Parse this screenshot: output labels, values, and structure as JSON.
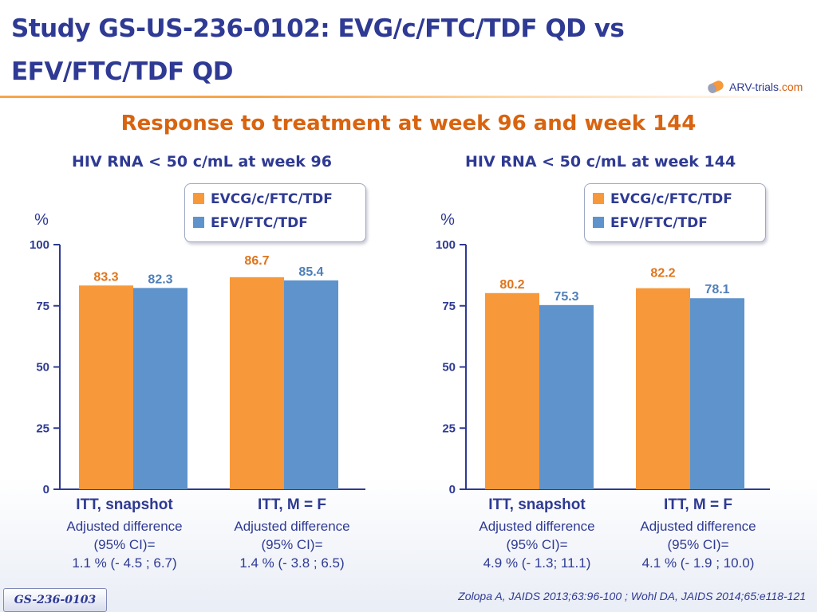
{
  "slide": {
    "title_line1": "Study GS-US-236-0102: EVG/c/FTC/TDF QD vs",
    "title_line2": "EFV/FTC/TDF QD",
    "subtitle": "Response to treatment at week 96 and week 144",
    "study_badge": "GS-236-0103",
    "citation": "Zolopa A, JAIDS 2013;63:96-100 ; Wohl DA, JAIDS 2014;65:e118-121",
    "logo": {
      "brand": "ARV-trials",
      "suffix": "com"
    }
  },
  "colors": {
    "title": "#2e3a93",
    "subtitle": "#d9630f",
    "orange": "#f7983a",
    "blue": "#5f93cb"
  },
  "chart_data": [
    {
      "type": "bar",
      "title": "HIV RNA < 50 c/mL at week 96",
      "ylabel": "%",
      "ylim": [
        0,
        100
      ],
      "yticks": [
        0,
        25,
        50,
        75,
        100
      ],
      "categories": [
        "ITT, snapshot",
        "ITT, M = F"
      ],
      "series": [
        {
          "name": "EVCG/c/FTC/TDF",
          "color": "#f7983a",
          "label_color": "#e0741a",
          "values": [
            83.3,
            86.7
          ]
        },
        {
          "name": "EFV/FTC/TDF",
          "color": "#5f93cb",
          "label_color": "#4f7fb8",
          "values": [
            82.3,
            85.4
          ]
        }
      ],
      "value_labels": [
        [
          "83.3",
          "86.7"
        ],
        [
          "82.3",
          "85.4"
        ]
      ],
      "annotations": [
        {
          "line1": "Adjusted difference",
          "line2": "(95% CI)=",
          "line3": "1.1 % (- 4.5 ; 6.7)"
        },
        {
          "line1": "Adjusted difference",
          "line2": "(95% CI)=",
          "line3": "1.4 % (- 3.8 ; 6.5)"
        }
      ]
    },
    {
      "type": "bar",
      "title": "HIV RNA < 50 c/mL at week 144",
      "ylabel": "%",
      "ylim": [
        0,
        100
      ],
      "yticks": [
        0,
        25,
        50,
        75,
        100
      ],
      "categories": [
        "ITT, snapshot",
        "ITT, M = F"
      ],
      "series": [
        {
          "name": "EVCG/c/FTC/TDF",
          "color": "#f7983a",
          "label_color": "#e0741a",
          "values": [
            80.2,
            82.2
          ]
        },
        {
          "name": "EFV/FTC/TDF",
          "color": "#5f93cb",
          "label_color": "#4f7fb8",
          "values": [
            75.3,
            78.1
          ]
        }
      ],
      "value_labels": [
        [
          "80.2",
          "82.2"
        ],
        [
          "75.3",
          "78.1"
        ]
      ],
      "annotations": [
        {
          "line1": "Adjusted difference",
          "line2": "(95% CI)=",
          "line3": "4.9 % (- 1.3; 11.1)"
        },
        {
          "line1": "Adjusted difference",
          "line2": "(95% CI)=",
          "line3": "4.1 % (- 1.9 ; 10.0)"
        }
      ]
    }
  ]
}
